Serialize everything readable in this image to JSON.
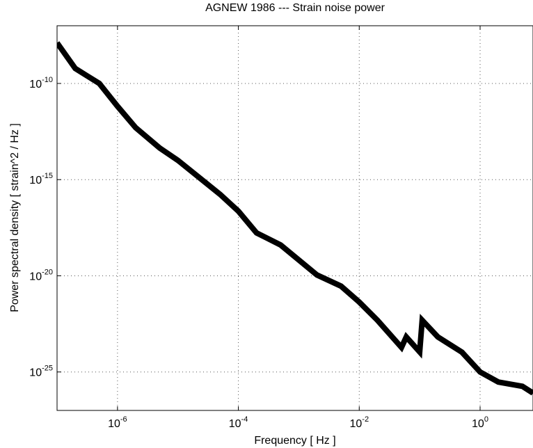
{
  "chart_data": {
    "type": "line",
    "title": "AGNEW 1986 --- Strain noise power",
    "x_label": "Frequency [ Hz ]",
    "y_label": "Power spectral density  [ strain^2 / Hz ]",
    "x_log": true,
    "y_log": true,
    "grid": true,
    "xlim": [
      1e-07,
      7.5
    ],
    "ylim": [
      1e-27,
      1e-07
    ],
    "xticks": [
      {
        "value": 1e-06,
        "label": "10^-6"
      },
      {
        "value": 0.0001,
        "label": "10^-4"
      },
      {
        "value": 0.01,
        "label": "10^-2"
      },
      {
        "value": 1,
        "label": "10^0"
      }
    ],
    "yticks": [
      {
        "value": 1e-10,
        "label": "10^-10"
      },
      {
        "value": 1e-15,
        "label": "10^-15"
      },
      {
        "value": 1e-20,
        "label": "10^-20"
      },
      {
        "value": 1e-25,
        "label": "10^-25"
      }
    ],
    "series": [
      {
        "color": "#000000",
        "x": [
          1e-07,
          2e-07,
          5e-07,
          1e-06,
          2e-06,
          5e-06,
          1e-05,
          5e-05,
          0.0001,
          0.0002,
          0.0005,
          0.002,
          0.005,
          0.01,
          0.02,
          0.05,
          0.06,
          0.1,
          0.11,
          0.2,
          0.5,
          1,
          2,
          5,
          7.5
        ],
        "values": [
          1.3e-08,
          6e-10,
          1e-10,
          6.5e-12,
          5e-13,
          4.4e-14,
          1e-14,
          1.7e-16,
          2.3e-17,
          1.7e-18,
          4e-19,
          1.1e-20,
          2.9e-21,
          4.3e-22,
          4.9e-23,
          1.9e-24,
          6.6e-24,
          1.1e-24,
          4.9e-23,
          6.6e-24,
          1.07e-24,
          1e-25,
          3e-26,
          1.8e-26,
          8e-27
        ]
      }
    ]
  }
}
